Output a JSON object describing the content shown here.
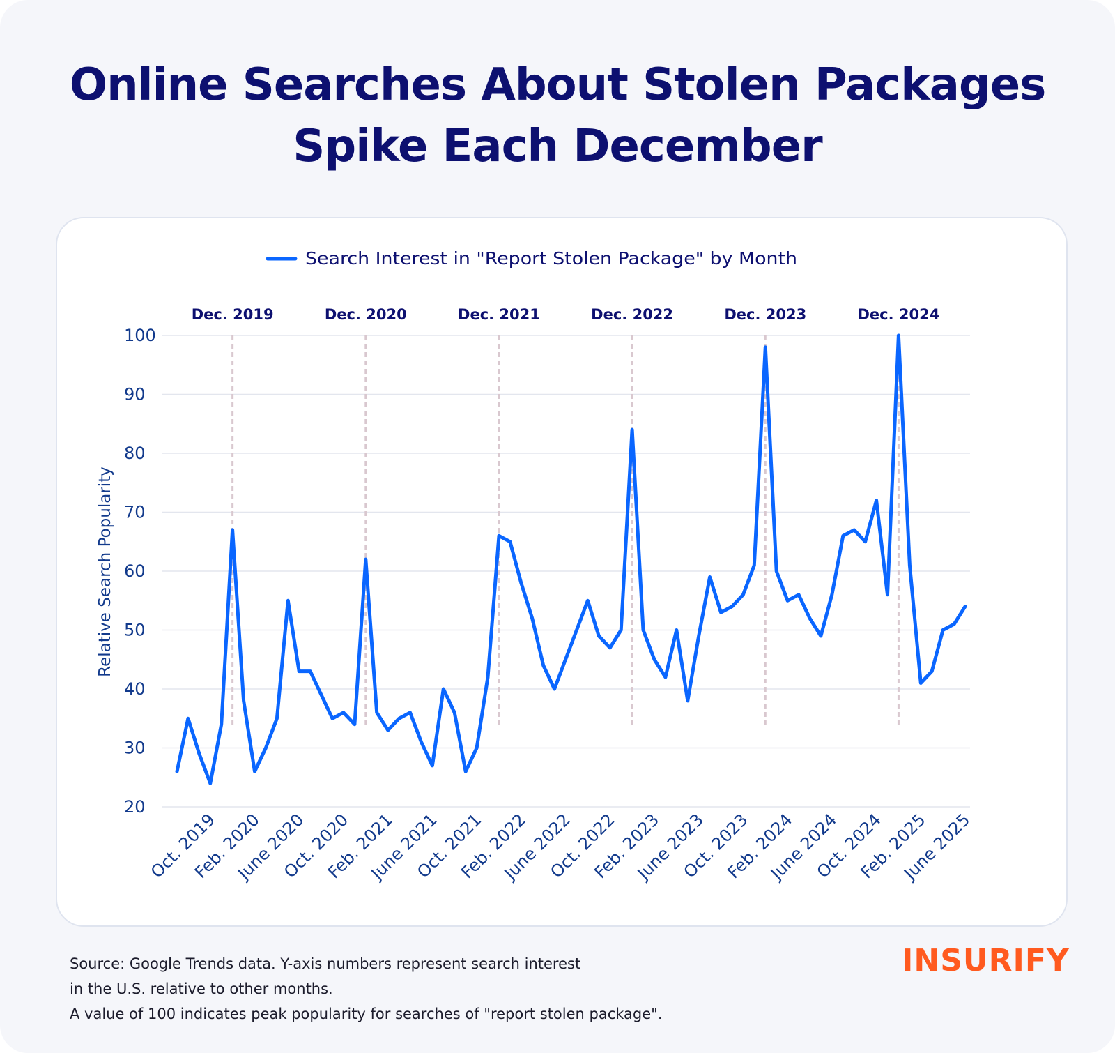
{
  "title": {
    "line1": "Online Searches About Stolen Packages",
    "line2": "Spike Each December"
  },
  "colors": {
    "title": "#0d1070",
    "line": "#0a66ff",
    "axis_text": "#123a8c",
    "grid": "#e3e6ee",
    "marker": "#d9c8cf",
    "brand": "#ff5a1f"
  },
  "chart_data": {
    "type": "line",
    "legend": "Search Interest in \"Report Stolen Package\" by Month",
    "legend_position": "top-center",
    "ylabel": "Relative Search Popularity",
    "xlabel": "",
    "ylim": [
      20,
      100
    ],
    "yticks": [
      20,
      30,
      40,
      50,
      60,
      70,
      80,
      90,
      100
    ],
    "grid": true,
    "x_tick_labels": [
      {
        "label": "Oct. 2019",
        "index": 3
      },
      {
        "label": "Feb. 2020",
        "index": 7
      },
      {
        "label": "June 2020",
        "index": 11
      },
      {
        "label": "Oct. 2020",
        "index": 15
      },
      {
        "label": "Feb. 2021",
        "index": 19
      },
      {
        "label": "June 2021",
        "index": 23
      },
      {
        "label": "Oct. 2021",
        "index": 27
      },
      {
        "label": "Feb. 2022",
        "index": 31
      },
      {
        "label": "June 2022",
        "index": 35
      },
      {
        "label": "Oct. 2022",
        "index": 39
      },
      {
        "label": "Feb. 2023",
        "index": 43
      },
      {
        "label": "June 2023",
        "index": 47
      },
      {
        "label": "Oct. 2023",
        "index": 51
      },
      {
        "label": "Feb. 2024",
        "index": 55
      },
      {
        "label": "June 2024",
        "index": 59
      },
      {
        "label": "Oct. 2024",
        "index": 63
      },
      {
        "label": "Feb. 2025",
        "index": 67
      },
      {
        "label": "June 2025",
        "index": 71
      }
    ],
    "annotations": [
      {
        "label": "Dec. 2019",
        "index": 5
      },
      {
        "label": "Dec. 2020",
        "index": 17
      },
      {
        "label": "Dec. 2021",
        "index": 29
      },
      {
        "label": "Dec. 2022",
        "index": 41
      },
      {
        "label": "Dec. 2023",
        "index": 53
      },
      {
        "label": "Dec. 2024",
        "index": 65
      }
    ],
    "series": [
      {
        "name": "Search Interest in \"Report Stolen Package\" by Month",
        "values": [
          26,
          35,
          29,
          24,
          34,
          67,
          38,
          26,
          30,
          35,
          55,
          43,
          43,
          39,
          35,
          36,
          34,
          62,
          36,
          33,
          35,
          36,
          31,
          27,
          40,
          36,
          26,
          30,
          42,
          66,
          65,
          58,
          52,
          44,
          40,
          45,
          50,
          55,
          49,
          47,
          50,
          84,
          50,
          45,
          42,
          50,
          38,
          49,
          59,
          53,
          54,
          56,
          61,
          98,
          60,
          55,
          56,
          52,
          49,
          56,
          66,
          67,
          65,
          72,
          56,
          100,
          61,
          41,
          43,
          50,
          51,
          54
        ]
      }
    ]
  },
  "footer": {
    "line1": "Source: Google Trends data. Y-axis numbers represent search interest",
    "line2": "in the U.S. relative to other months.",
    "line3": "A value of 100 indicates peak popularity for searches of \"report stolen package\"."
  },
  "brand": {
    "logo_text": "INSURIFY"
  }
}
